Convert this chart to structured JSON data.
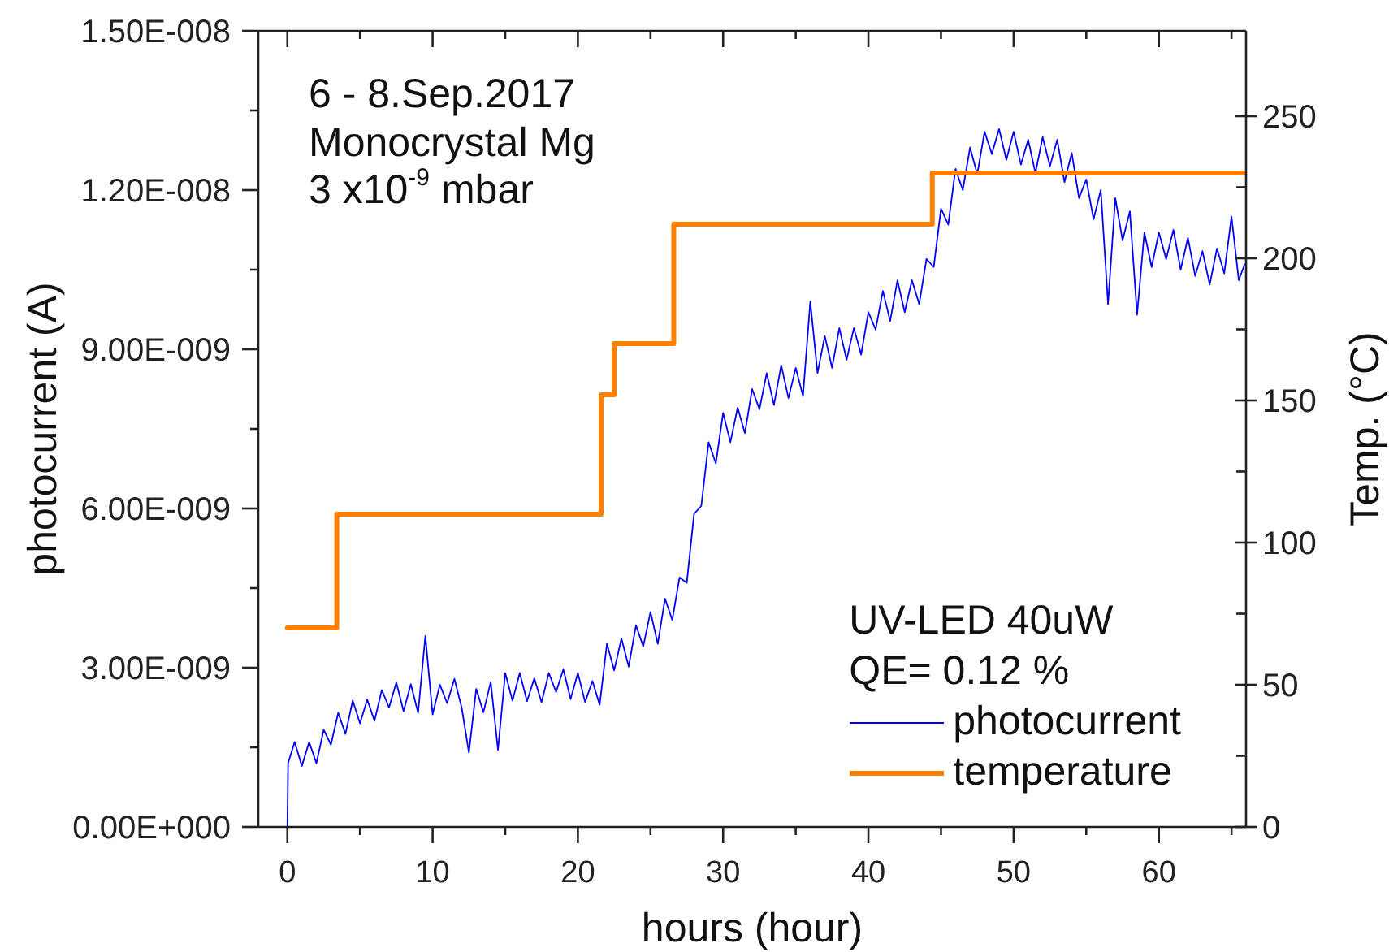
{
  "chart_data": {
    "type": "line",
    "xlabel": "hours (hour)",
    "ylabel": "photocurrent (A)",
    "y2label": "Temp. (°C)",
    "annotations": [
      "6 - 8.Sep.2017",
      "Monocrystal Mg",
      "3 x10$^{-9}$ mbar",
      "UV-LED 40uW",
      "QE= 0.12 %"
    ],
    "xlim": [
      -2,
      66
    ],
    "xticks": [
      0,
      {
        "value": 5,
        "label": null
      },
      10,
      {
        "value": 15,
        "label": null
      },
      20,
      {
        "value": 25,
        "label": null
      },
      30,
      {
        "value": 35,
        "label": null
      },
      40,
      {
        "value": 45,
        "label": null
      },
      50,
      {
        "value": 55,
        "label": null
      },
      60,
      {
        "value": 65,
        "label": null
      }
    ],
    "ylim": [
      0,
      1.5e-08
    ],
    "yticks": [
      {
        "value": 0,
        "label": "0.00E+000"
      },
      {
        "value": 1.5e-09,
        "label": null
      },
      {
        "value": 3e-09,
        "label": "3.00E-009"
      },
      {
        "value": 4.5e-09,
        "label": null
      },
      {
        "value": 6e-09,
        "label": "6.00E-009"
      },
      {
        "value": 7.5e-09,
        "label": null
      },
      {
        "value": 9e-09,
        "label": "9.00E-009"
      },
      {
        "value": 1.05e-08,
        "label": null
      },
      {
        "value": 1.2e-08,
        "label": "1.20E-008"
      },
      {
        "value": 1.35e-08,
        "label": null
      },
      {
        "value": 1.5e-08,
        "label": "1.50E-008"
      }
    ],
    "y2lim": [
      0,
      280
    ],
    "y2ticks": [
      0,
      {
        "value": 25,
        "label": null
      },
      50,
      {
        "value": 75,
        "label": null
      },
      100,
      {
        "value": 125,
        "label": null
      },
      150,
      {
        "value": 175,
        "label": null
      },
      200,
      {
        "value": 225,
        "label": null
      },
      250
    ],
    "legend": "bottom right",
    "series": [
      {
        "name": "photocurrent",
        "type": "line",
        "color": "#0000ff",
        "x": [
          0,
          0.05,
          0.5,
          1,
          1.5,
          2,
          2.5,
          3,
          3.5,
          4,
          4.5,
          5,
          5.5,
          6,
          6.5,
          7,
          7.5,
          8,
          8.5,
          9,
          9.5,
          10,
          10.5,
          11,
          11.5,
          12,
          12.5,
          13,
          13.5,
          14,
          14.5,
          15,
          15.5,
          16,
          16.5,
          17,
          17.5,
          18,
          18.5,
          19,
          19.5,
          20,
          20.5,
          21,
          21.5,
          22,
          22.5,
          23,
          23.5,
          24,
          24.5,
          25,
          25.5,
          26,
          26.5,
          27,
          27.5,
          28,
          28.5,
          29,
          29.5,
          30,
          30.5,
          31,
          31.5,
          32,
          32.5,
          33,
          33.5,
          34,
          34.5,
          35,
          35.5,
          36,
          36.5,
          37,
          37.5,
          38,
          38.5,
          39,
          39.5,
          40,
          40.5,
          41,
          41.5,
          42,
          42.5,
          43,
          43.5,
          44,
          44.5,
          45,
          45.5,
          46,
          46.5,
          47,
          47.5,
          48,
          48.5,
          49,
          49.5,
          50,
          50.5,
          51,
          51.5,
          52,
          52.5,
          53,
          53.5,
          54,
          54.5,
          55,
          55.5,
          56,
          56.5,
          57,
          57.5,
          58,
          58.5,
          59,
          59.5,
          60,
          60.5,
          61,
          61.5,
          62,
          62.5,
          63,
          63.5,
          64,
          64.5,
          65,
          65.5,
          65.9
        ],
        "values": [
          0,
          1.2e-09,
          1.6e-09,
          1.15e-09,
          1.6e-09,
          1.2e-09,
          1.83e-09,
          1.55e-09,
          2.15e-09,
          1.75e-09,
          2.38e-09,
          1.95e-09,
          2.4e-09,
          2e-09,
          2.58e-09,
          2.25e-09,
          2.72e-09,
          2.18e-09,
          2.69e-09,
          2.15e-09,
          3.6e-09,
          2.12e-09,
          2.68e-09,
          2.33e-09,
          2.79e-09,
          2.25e-09,
          1.4e-09,
          2.6e-09,
          2.16e-09,
          2.73e-09,
          1.45e-09,
          2.9e-09,
          2.38e-09,
          2.9e-09,
          2.37e-09,
          2.8e-09,
          2.35e-09,
          2.9e-09,
          2.54e-09,
          2.97e-09,
          2.41e-09,
          2.9e-09,
          2.35e-09,
          2.75e-09,
          2.3e-09,
          3.45e-09,
          2.95e-09,
          3.55e-09,
          3.02e-09,
          3.8e-09,
          3.4e-09,
          4.05e-09,
          3.45e-09,
          4.3e-09,
          3.9e-09,
          4.7e-09,
          4.6e-09,
          5.9e-09,
          6.05e-09,
          7.25e-09,
          6.85e-09,
          7.8e-09,
          7.25e-09,
          7.9e-09,
          7.42e-09,
          8.25e-09,
          7.87e-09,
          8.55e-09,
          7.95e-09,
          8.7e-09,
          8.08e-09,
          8.65e-09,
          8.12e-09,
          9.9e-09,
          8.55e-09,
          9.25e-09,
          8.65e-09,
          9.4e-09,
          8.8e-09,
          9.4e-09,
          8.9e-09,
          9.7e-09,
          9.37e-09,
          1.01e-08,
          9.53e-09,
          1.03e-08,
          9.7e-09,
          1.03e-08,
          9.85e-09,
          1.07e-08,
          1.055e-08,
          1.165e-08,
          1.135e-08,
          1.24e-08,
          1.2e-08,
          1.28e-08,
          1.23e-08,
          1.31e-08,
          1.268e-08,
          1.315e-08,
          1.257e-08,
          1.31e-08,
          1.248e-08,
          1.295e-08,
          1.232e-08,
          1.3e-08,
          1.245e-08,
          1.295e-08,
          1.215e-08,
          1.27e-08,
          1.185e-08,
          1.22e-08,
          1.145e-08,
          1.2e-08,
          9.85e-09,
          1.185e-08,
          1.105e-08,
          1.16e-08,
          9.65e-09,
          1.12e-08,
          1.055e-08,
          1.12e-08,
          1.07e-08,
          1.125e-08,
          1.05e-08,
          1.11e-08,
          1.038e-08,
          1.085e-08,
          1.022e-08,
          1.09e-08,
          1.043e-08,
          1.15e-08,
          1.03e-08,
          1.06e-08
        ]
      },
      {
        "name": "temperature",
        "type": "step",
        "axis": "y2",
        "color": "#ff8000",
        "x": [
          0,
          3.4,
          21.6,
          22.5,
          26.6,
          44.4,
          66
        ],
        "values": [
          70,
          110,
          152,
          170,
          212,
          230,
          230
        ]
      }
    ]
  }
}
